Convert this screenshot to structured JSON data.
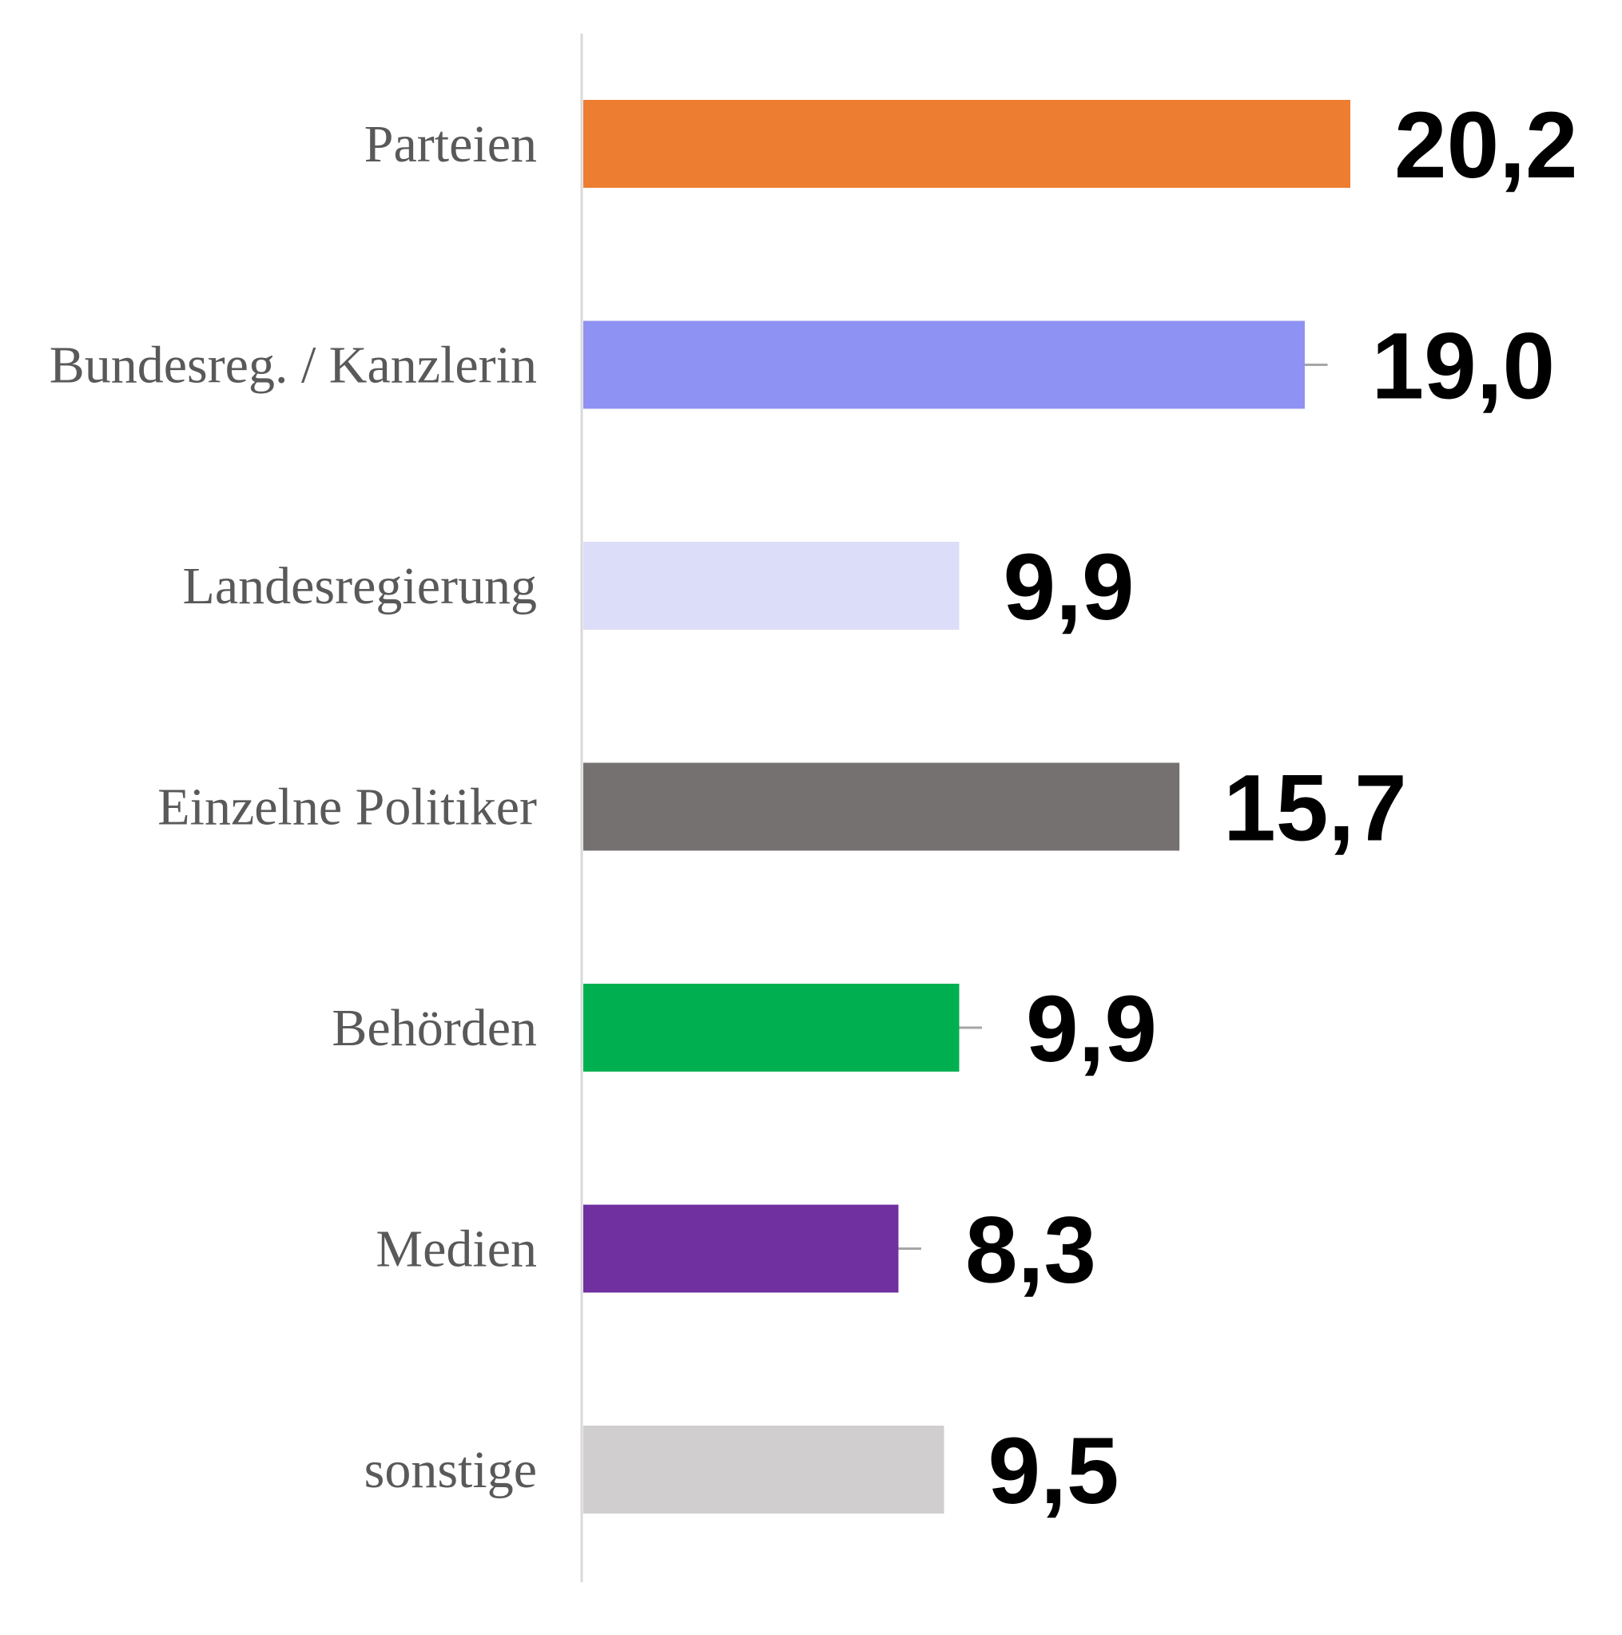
{
  "chart_data": {
    "type": "bar",
    "orientation": "horizontal",
    "categories": [
      "Parteien",
      "Bundesreg. / Kanzlerin",
      "Landesregierung",
      "Einzelne Politiker",
      "Behörden",
      "Medien",
      "sonstige"
    ],
    "values": [
      20.2,
      19.0,
      9.9,
      15.7,
      9.9,
      8.3,
      9.5
    ],
    "value_labels": [
      "20,2",
      "19,0",
      "9,9",
      "15,7",
      "9,9",
      "8,3",
      "9,5"
    ],
    "error_bars": [
      0,
      0.6,
      0,
      0,
      0.6,
      0.6,
      0
    ],
    "colors": [
      "#ED7D31",
      "#8E92F2",
      "#DCDDF8",
      "#767171",
      "#00B050",
      "#7030A0",
      "#D0CECE"
    ],
    "title": "",
    "xlabel": "",
    "ylabel": "",
    "xlim": [
      0,
      21
    ],
    "grid": false,
    "legend": "none"
  }
}
